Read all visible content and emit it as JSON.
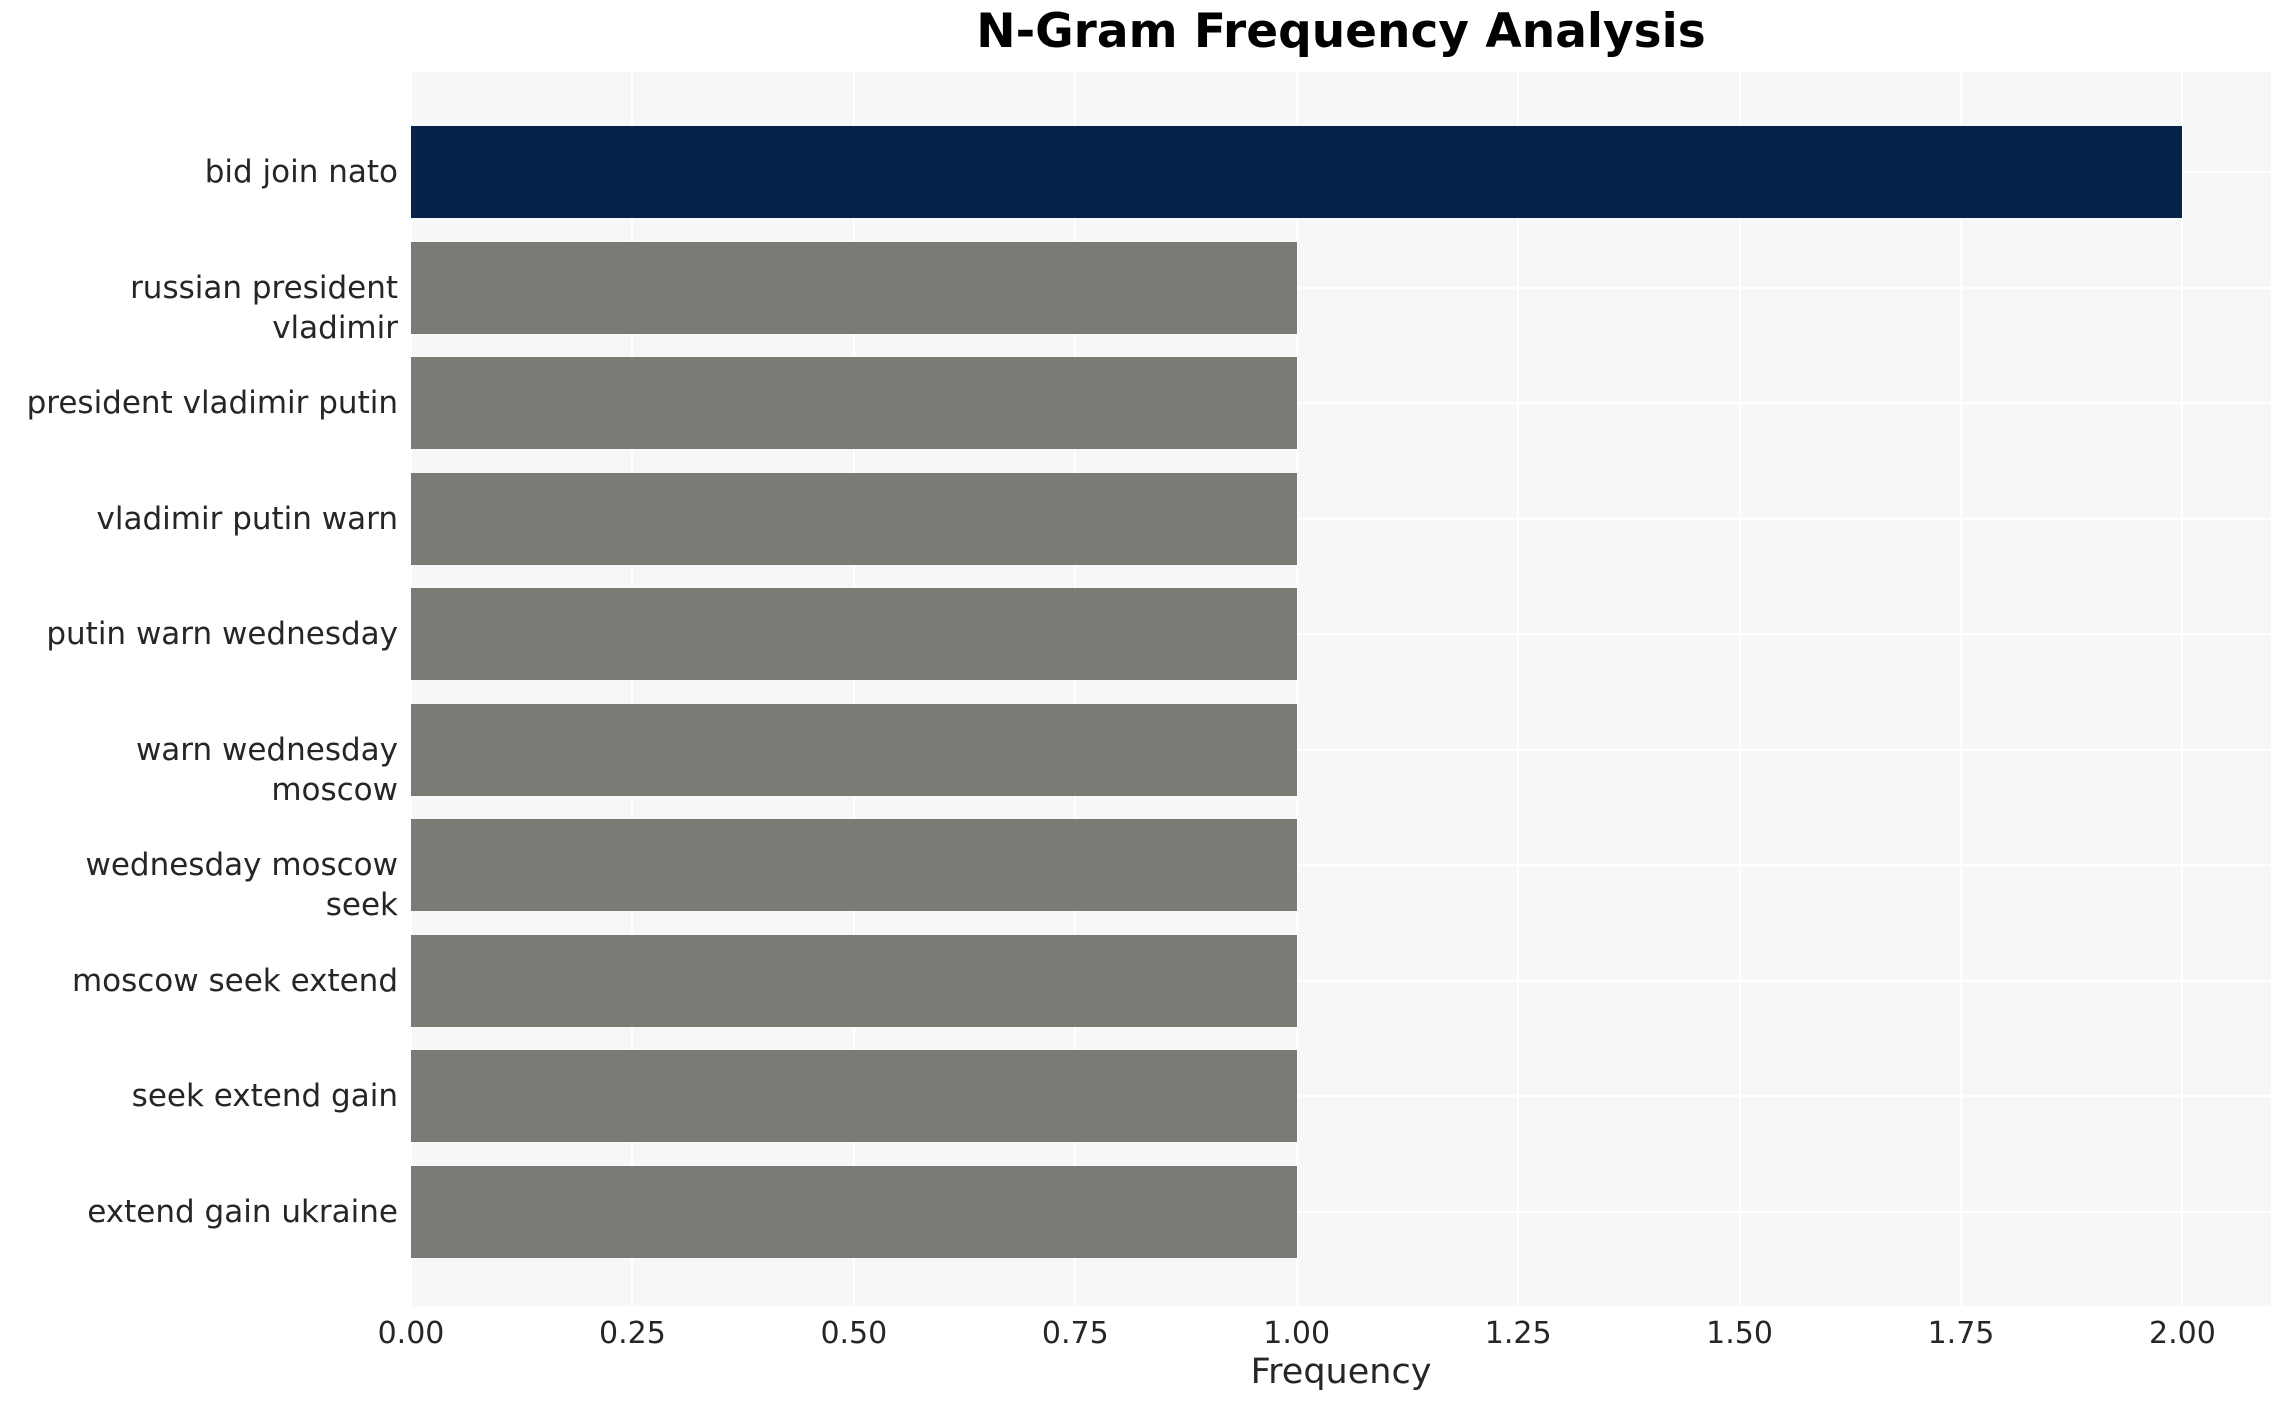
{
  "title": "N-Gram Frequency Analysis",
  "chart_data": {
    "type": "bar",
    "orientation": "horizontal",
    "title": "N-Gram Frequency Analysis",
    "categories": [
      "bid join nato",
      "russian president vladimir",
      "president vladimir putin",
      "vladimir putin warn",
      "putin warn wednesday",
      "warn wednesday moscow",
      "wednesday moscow seek",
      "moscow seek extend",
      "seek extend gain",
      "extend gain ukraine"
    ],
    "values": [
      2,
      1,
      1,
      1,
      1,
      1,
      1,
      1,
      1,
      1
    ],
    "xlabel": "Frequency",
    "ylabel": "",
    "xlim": [
      0,
      2.1
    ],
    "xticks": [
      {
        "value": 0.0,
        "label": "0.00"
      },
      {
        "value": 0.25,
        "label": "0.25"
      },
      {
        "value": 0.5,
        "label": "0.50"
      },
      {
        "value": 0.75,
        "label": "0.75"
      },
      {
        "value": 1.0,
        "label": "1.00"
      },
      {
        "value": 1.25,
        "label": "1.25"
      },
      {
        "value": 1.5,
        "label": "1.50"
      },
      {
        "value": 1.75,
        "label": "1.75"
      },
      {
        "value": 2.0,
        "label": "2.00"
      }
    ],
    "grid": true,
    "legend": false,
    "colors": {
      "highlight_bar": "#062349",
      "default_bar": "#7b7a75",
      "plot_background": "#f7f7f7",
      "gridline": "#ffffff",
      "text": "#262626",
      "title_text": "#000000"
    },
    "bar_colors": [
      "#062349",
      "#7b7a75",
      "#7b7a75",
      "#7b7a75",
      "#7b7a75",
      "#7b7a75",
      "#7b7a75",
      "#7b7a75",
      "#7b7a75",
      "#7b7a75"
    ]
  }
}
